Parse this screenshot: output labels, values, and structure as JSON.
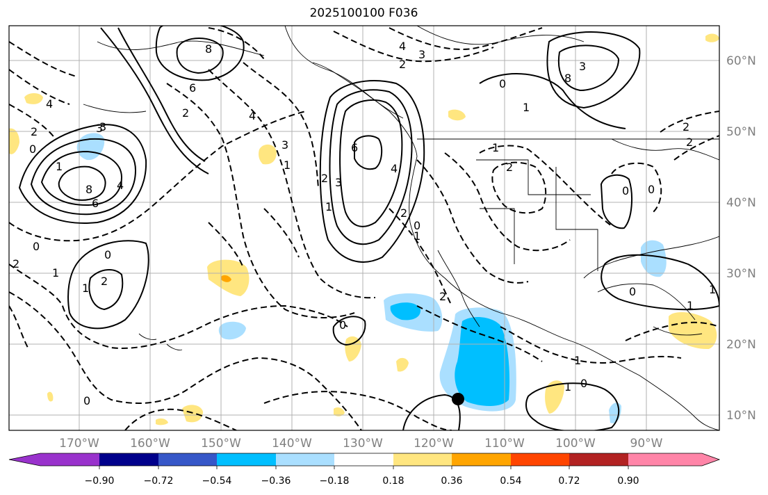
{
  "title": "2025100100 F036",
  "map": {
    "lon_labels": [
      "170°W",
      "160°W",
      "150°W",
      "140°W",
      "130°W",
      "120°W",
      "110°W",
      "100°W",
      "90°W"
    ],
    "lat_labels": [
      "60°N",
      "50°N",
      "40°N",
      "30°N",
      "20°N",
      "10°N"
    ],
    "contour_labels": [
      "4",
      "3",
      "2",
      "8",
      "6",
      "2",
      "1",
      "0",
      "0",
      "3",
      "4",
      "2",
      "8",
      "6",
      "4",
      "3",
      "2",
      "1",
      "0",
      "1",
      "2",
      "0",
      "0",
      "1",
      "2",
      "2",
      "0",
      "1",
      "2",
      "3",
      "3",
      "4",
      "1",
      "4",
      "6",
      "8",
      "0",
      "3",
      "2",
      "1",
      "0",
      "0",
      "1",
      "1",
      "1",
      "0",
      "1",
      "0",
      "2",
      "2",
      "1"
    ],
    "marker": "storm-center-dot"
  },
  "colorbar": {
    "ticks": [
      "−0.90",
      "−0.72",
      "−0.54",
      "−0.36",
      "−0.18",
      "0.18",
      "0.36",
      "0.54",
      "0.72",
      "0.90"
    ],
    "colors": [
      "#9932cc",
      "#00008b",
      "#3657c8",
      "#00bfff",
      "#aadfff",
      "#ffffff",
      "#ffe680",
      "#ffa500",
      "#ff4500",
      "#b22222",
      "#ff85a8"
    ]
  }
}
